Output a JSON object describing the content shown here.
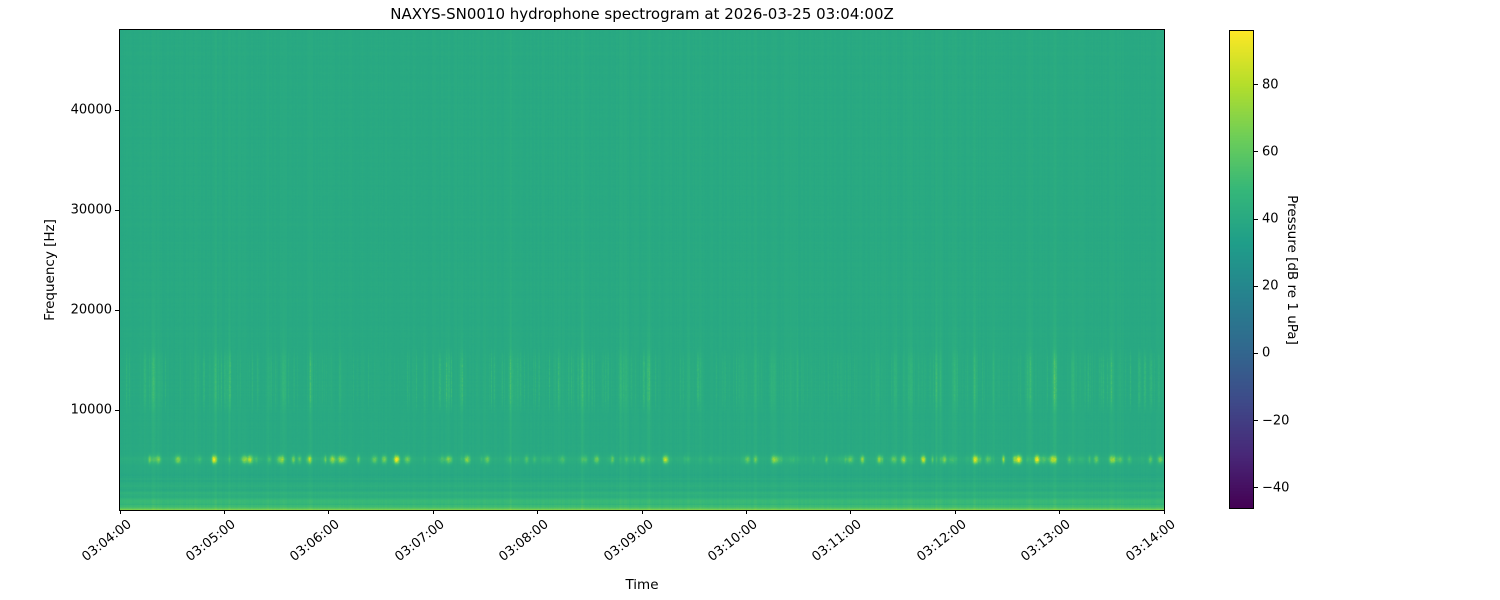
{
  "chart_data": {
    "type": "heatmap",
    "title": "NAXYS-SN0010 hydrophone spectrogram at 2026-03-25 03:04:00Z",
    "xlabel": "Time",
    "ylabel": "Frequency [Hz]",
    "x_tick_labels": [
      "03:04:00",
      "03:05:00",
      "03:06:00",
      "03:07:00",
      "03:08:00",
      "03:09:00",
      "03:10:00",
      "03:11:00",
      "03:12:00",
      "03:13:00",
      "03:14:00"
    ],
    "y_ticks": [
      {
        "value": 10000,
        "label": "10000"
      },
      {
        "value": 20000,
        "label": "20000"
      },
      {
        "value": 30000,
        "label": "30000"
      },
      {
        "value": 40000,
        "label": "40000"
      }
    ],
    "freq_axis_range_hz": [
      0,
      48000
    ],
    "time_axis_range": [
      "03:04:00",
      "03:14:00"
    ],
    "grid": false,
    "colorbar": {
      "label": "Pressure [dB re 1 uPa]",
      "ticks": [
        {
          "value": 80,
          "label": "80"
        },
        {
          "value": 60,
          "label": "60"
        },
        {
          "value": 40,
          "label": "40"
        },
        {
          "value": 20,
          "label": "20"
        },
        {
          "value": 0,
          "label": "0"
        },
        {
          "value": -20,
          "label": "−20"
        },
        {
          "value": -40,
          "label": "−40"
        }
      ],
      "vmin": -46,
      "vmax": 96,
      "colormap": "viridis",
      "stops": [
        "#440154",
        "#482878",
        "#3e4a89",
        "#31688e",
        "#26828e",
        "#1f9e89",
        "#35b779",
        "#6ece58",
        "#b5de2b",
        "#fde725"
      ]
    },
    "spectrogram": {
      "background_db": 40,
      "column_noise_db": 1.1,
      "row_noise_db": 1.0,
      "broadband_click_count": 60,
      "broadband_click_max_db": 6,
      "midband_hz": [
        10500,
        15500
      ],
      "midband_streak_max_db": 11,
      "tonal_line_hz": 5100,
      "tonal_line_halfwidth_hz": 270,
      "tonal_baseline_db": 2.5,
      "tonal_burst_count": 170,
      "tonal_burst_max_db": 40,
      "lowband_top_hz": 3600,
      "lowband_gain_db": 13,
      "lowband_stripe_db": 2.5,
      "surface_rows_db": 16
    }
  }
}
